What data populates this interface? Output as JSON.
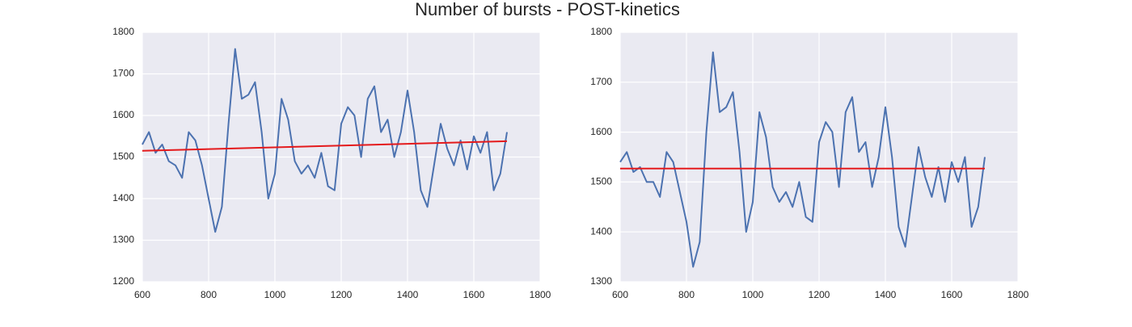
{
  "title": "Number of bursts - POST-kinetics",
  "chart_data": [
    {
      "type": "line",
      "xlim": [
        600,
        1800
      ],
      "xticks": [
        600,
        800,
        1000,
        1200,
        1400,
        1600,
        1800
      ],
      "ylim": [
        1200,
        1800
      ],
      "yticks": [
        1200,
        1300,
        1400,
        1500,
        1600,
        1700,
        1800
      ],
      "grid": true,
      "series": [
        {
          "color": "#4c72b0",
          "x": [
            600,
            620,
            640,
            660,
            680,
            700,
            720,
            740,
            760,
            780,
            800,
            820,
            840,
            860,
            880,
            900,
            920,
            940,
            960,
            980,
            1000,
            1020,
            1040,
            1060,
            1080,
            1100,
            1120,
            1140,
            1160,
            1180,
            1200,
            1220,
            1240,
            1260,
            1280,
            1300,
            1320,
            1340,
            1360,
            1380,
            1400,
            1420,
            1440,
            1460,
            1480,
            1500,
            1520,
            1540,
            1560,
            1580,
            1600,
            1620,
            1640,
            1660,
            1680,
            1700
          ],
          "values": [
            1530,
            1560,
            1510,
            1530,
            1490,
            1480,
            1450,
            1560,
            1540,
            1480,
            1400,
            1320,
            1380,
            1580,
            1760,
            1640,
            1650,
            1680,
            1560,
            1400,
            1460,
            1640,
            1590,
            1490,
            1460,
            1480,
            1450,
            1510,
            1430,
            1420,
            1580,
            1620,
            1600,
            1500,
            1640,
            1670,
            1560,
            1590,
            1500,
            1560,
            1660,
            1560,
            1420,
            1380,
            1480,
            1580,
            1520,
            1480,
            1540,
            1470,
            1550,
            1510,
            1560,
            1420,
            1460,
            1560
          ]
        },
        {
          "color": "#e41a1c",
          "x": [
            600,
            1700
          ],
          "values": [
            1515,
            1538
          ]
        }
      ]
    },
    {
      "type": "line",
      "xlim": [
        600,
        1800
      ],
      "xticks": [
        600,
        800,
        1000,
        1200,
        1400,
        1600,
        1800
      ],
      "ylim": [
        1300,
        1800
      ],
      "yticks": [
        1300,
        1400,
        1500,
        1600,
        1700,
        1800
      ],
      "grid": true,
      "series": [
        {
          "color": "#4c72b0",
          "x": [
            600,
            620,
            640,
            660,
            680,
            700,
            720,
            740,
            760,
            780,
            800,
            820,
            840,
            860,
            880,
            900,
            920,
            940,
            960,
            980,
            1000,
            1020,
            1040,
            1060,
            1080,
            1100,
            1120,
            1140,
            1160,
            1180,
            1200,
            1220,
            1240,
            1260,
            1280,
            1300,
            1320,
            1340,
            1360,
            1380,
            1400,
            1420,
            1440,
            1460,
            1480,
            1500,
            1520,
            1540,
            1560,
            1580,
            1600,
            1620,
            1640,
            1660,
            1680,
            1700
          ],
          "values": [
            1540,
            1560,
            1520,
            1530,
            1500,
            1500,
            1470,
            1560,
            1540,
            1480,
            1420,
            1330,
            1380,
            1600,
            1760,
            1640,
            1650,
            1680,
            1560,
            1400,
            1460,
            1640,
            1590,
            1490,
            1460,
            1480,
            1450,
            1500,
            1430,
            1420,
            1580,
            1620,
            1600,
            1490,
            1640,
            1670,
            1560,
            1580,
            1490,
            1550,
            1650,
            1550,
            1410,
            1370,
            1470,
            1570,
            1510,
            1470,
            1530,
            1460,
            1540,
            1500,
            1550,
            1410,
            1450,
            1550
          ]
        },
        {
          "color": "#e41a1c",
          "x": [
            600,
            1700
          ],
          "values": [
            1527,
            1527
          ]
        }
      ]
    }
  ]
}
